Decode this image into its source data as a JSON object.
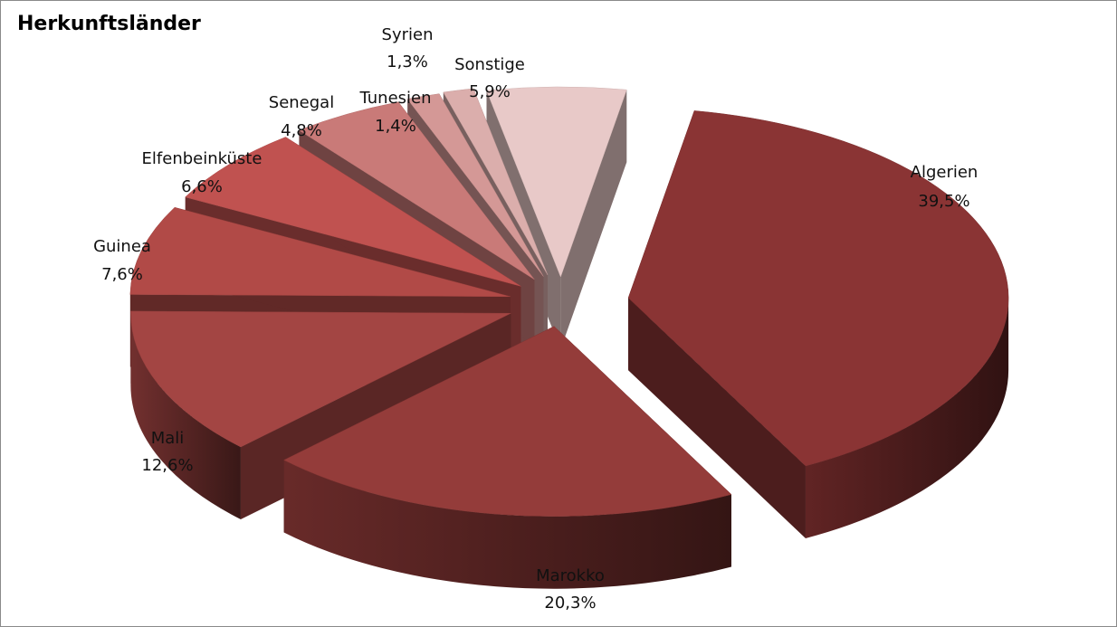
{
  "chart_data": {
    "type": "pie",
    "title": "Herkunftsländer",
    "slices": [
      {
        "name": "Algerien",
        "value": 39.5,
        "label": "39,5%",
        "color": "#8a3434"
      },
      {
        "name": "Marokko",
        "value": 20.3,
        "label": "20,3%",
        "color": "#943c3a"
      },
      {
        "name": "Mali",
        "value": 12.6,
        "label": "12,6%",
        "color": "#a34543"
      },
      {
        "name": "Guinea",
        "value": 7.6,
        "label": "7,6%",
        "color": "#b14a47"
      },
      {
        "name": "Elfenbeinküste",
        "value": 6.6,
        "label": "6,6%",
        "color": "#c05250"
      },
      {
        "name": "Senegal",
        "value": 4.8,
        "label": "4,8%",
        "color": "#c97a78"
      },
      {
        "name": "Tunesien",
        "value": 1.4,
        "label": "1,4%",
        "color": "#d49896"
      },
      {
        "name": "Syrien",
        "value": 1.3,
        "label": "1,3%",
        "color": "#dbaeac"
      },
      {
        "name": "Sonstige",
        "value": 5.9,
        "label": "5,9%",
        "color": "#e8c9c8"
      }
    ]
  }
}
